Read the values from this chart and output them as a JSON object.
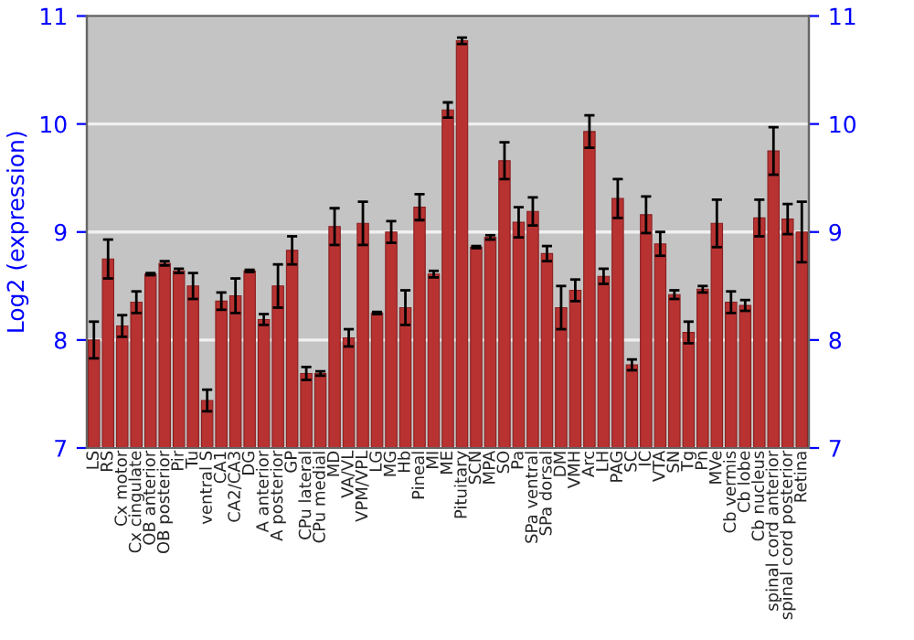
{
  "chart_data": {
    "type": "bar",
    "ylabel": "Log2 (expression)",
    "categories": [
      "LS",
      "RS",
      "Cx motor",
      "Cx cingulate",
      "OB anterior",
      "OB posterior",
      "Pir",
      "Tu",
      "ventral S",
      "CA1",
      "CA2/CA3",
      "DG",
      "A anterior",
      "A posterior",
      "GP",
      "CPu lateral",
      "CPu medial",
      "MD",
      "VA/VL",
      "VPM/VPL",
      "LG",
      "MG",
      "Hb",
      "Pineal",
      "MI",
      "ME",
      "Pituitary",
      "SCN",
      "MPA",
      "SO",
      "Pa",
      "SPa ventral",
      "SPa dorsal",
      "DM",
      "VMH",
      "Arc",
      "LH",
      "PAG",
      "SC",
      "IC",
      "VTA",
      "SN",
      "Tg",
      "Pn",
      "MVe",
      "Cb vermis",
      "Cb lobe",
      "Cb nucleus",
      "spinal cord anterior",
      "spinal cord posterior",
      "Retina"
    ],
    "values": [
      8.0,
      8.75,
      8.13,
      8.35,
      8.61,
      8.71,
      8.64,
      8.5,
      7.44,
      8.36,
      8.41,
      8.64,
      8.19,
      8.5,
      8.83,
      7.69,
      7.69,
      9.05,
      8.02,
      9.08,
      8.25,
      9.0,
      8.3,
      9.23,
      8.61,
      10.13,
      10.77,
      8.86,
      8.95,
      9.66,
      9.09,
      9.19,
      8.8,
      8.3,
      8.46,
      9.93,
      8.59,
      9.31,
      7.77,
      9.16,
      8.89,
      8.42,
      8.07,
      8.47,
      9.08,
      8.35,
      8.32,
      9.13,
      9.75,
      9.12,
      9.0
    ],
    "errors": [
      0.17,
      0.18,
      0.1,
      0.1,
      0.01,
      0.02,
      0.02,
      0.12,
      0.1,
      0.08,
      0.16,
      0.01,
      0.05,
      0.2,
      0.13,
      0.06,
      0.02,
      0.17,
      0.08,
      0.2,
      0.01,
      0.1,
      0.16,
      0.12,
      0.03,
      0.07,
      0.03,
      0.01,
      0.02,
      0.17,
      0.14,
      0.13,
      0.07,
      0.2,
      0.1,
      0.15,
      0.07,
      0.18,
      0.05,
      0.17,
      0.11,
      0.04,
      0.1,
      0.03,
      0.22,
      0.1,
      0.05,
      0.17,
      0.22,
      0.14,
      0.28
    ],
    "color": "#b83232",
    "ylim": [
      7,
      11
    ],
    "yticks": [
      7,
      8,
      9,
      10,
      11
    ],
    "y2lim": [
      7,
      11
    ],
    "y2ticks": [
      7,
      8,
      9,
      10,
      11
    ],
    "grid": "y",
    "legend": false
  }
}
